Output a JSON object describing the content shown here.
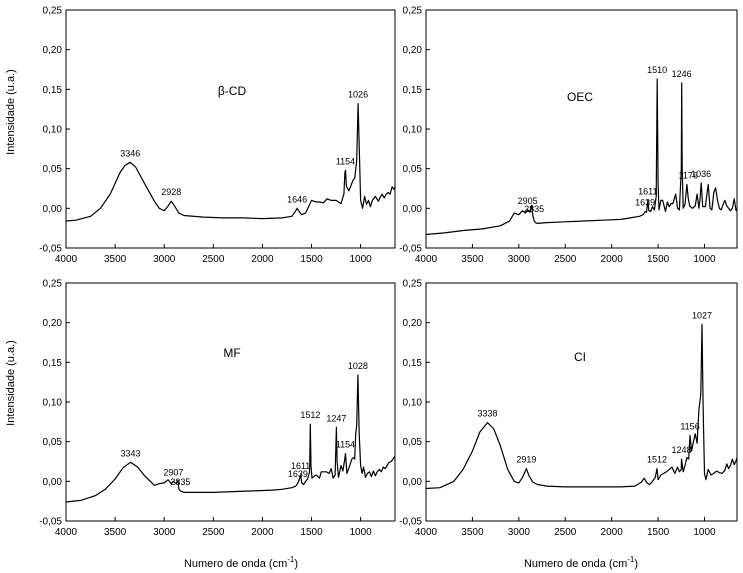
{
  "figure": {
    "ylabel": "Intensidade (u.a.)",
    "xlabel_left": "Numero de onda (cm-1)",
    "xlabel_right": "Numero de onda (cm-1)",
    "xlabel_base": "Numero de onda (cm",
    "xlabel_sup": "-1",
    "xlabel_tail": ")"
  },
  "chart_data": [
    {
      "type": "line",
      "label": "β-CD",
      "xlabel": "Numero de onda (cm-1)",
      "ylabel": "Intensidade (u.a.)",
      "xlim": [
        4000,
        650
      ],
      "ylim": [
        -0.05,
        0.25
      ],
      "xticks": [
        4000,
        3500,
        3000,
        2500,
        2000,
        1500,
        1000
      ],
      "yticks": [
        "-0,05",
        "0,00",
        "0,05",
        "0,10",
        "0,15",
        "0,20",
        "0,25"
      ],
      "series": [
        {
          "name": "β-CD",
          "x": [
            4000,
            3900,
            3750,
            3650,
            3550,
            3450,
            3400,
            3346,
            3290,
            3200,
            3100,
            3050,
            3000,
            2960,
            2928,
            2900,
            2850,
            2800,
            2600,
            2400,
            2200,
            2000,
            1800,
            1700,
            1660,
            1646,
            1620,
            1600,
            1560,
            1500,
            1450,
            1420,
            1380,
            1340,
            1300,
            1250,
            1200,
            1170,
            1160,
            1154,
            1145,
            1120,
            1100,
            1080,
            1060,
            1040,
            1026,
            1010,
            1000,
            980,
            960,
            940,
            920,
            900,
            880,
            850,
            820,
            800,
            780,
            760,
            740,
            720,
            700,
            680,
            660,
            650
          ],
          "y": [
            -0.016,
            -0.015,
            -0.01,
            0.0,
            0.018,
            0.045,
            0.054,
            0.058,
            0.052,
            0.031,
            0.009,
            0.0,
            -0.003,
            0.003,
            0.009,
            0.004,
            -0.006,
            -0.009,
            -0.011,
            -0.012,
            -0.012,
            -0.013,
            -0.012,
            -0.01,
            -0.003,
            0.0,
            -0.005,
            -0.008,
            -0.006,
            0.01,
            0.008,
            0.008,
            0.007,
            0.012,
            0.01,
            0.01,
            0.006,
            0.018,
            0.045,
            0.048,
            0.028,
            0.022,
            0.028,
            0.035,
            0.038,
            0.06,
            0.132,
            0.06,
            0.01,
            0.0,
            0.015,
            0.005,
            0.01,
            0.002,
            0.01,
            0.015,
            0.009,
            0.014,
            0.018,
            0.013,
            0.018,
            0.02,
            0.018,
            0.027,
            0.024,
            0.027
          ]
        }
      ],
      "annotations": [
        {
          "text": "3346",
          "x": 3346,
          "y": 0.058
        },
        {
          "text": "2928",
          "x": 2928,
          "y": 0.009
        },
        {
          "text": "1646",
          "x": 1646,
          "y": 0.0
        },
        {
          "text": "1154",
          "x": 1154,
          "y": 0.048
        },
        {
          "text": "1026",
          "x": 1026,
          "y": 0.132
        }
      ]
    },
    {
      "type": "line",
      "label": "OEC",
      "xlabel": "Numero de onda (cm-1)",
      "ylabel": "",
      "xlim": [
        4000,
        650
      ],
      "ylim": [
        -0.05,
        0.25
      ],
      "xticks": [
        4000,
        3500,
        3000,
        2500,
        2000,
        1500,
        1000
      ],
      "yticks": [
        "-0,05",
        "0,00",
        "0,05",
        "0,10",
        "0,15",
        "0,20",
        "0,25"
      ],
      "series": [
        {
          "name": "OEC",
          "x": [
            4000,
            3800,
            3600,
            3400,
            3200,
            3100,
            3050,
            3000,
            2960,
            2930,
            2905,
            2880,
            2860,
            2850,
            2835,
            2820,
            2800,
            2700,
            2500,
            2300,
            2100,
            1900,
            1800,
            1700,
            1660,
            1639,
            1625,
            1611,
            1600,
            1580,
            1560,
            1540,
            1520,
            1510,
            1500,
            1490,
            1470,
            1450,
            1420,
            1400,
            1380,
            1360,
            1340,
            1310,
            1290,
            1270,
            1250,
            1246,
            1240,
            1230,
            1210,
            1190,
            1176,
            1160,
            1130,
            1100,
            1080,
            1060,
            1050,
            1036,
            1020,
            990,
            960,
            940,
            920,
            900,
            880,
            860,
            840,
            820,
            800,
            780,
            760,
            740,
            720,
            700,
            680,
            660,
            650
          ],
          "y": [
            -0.033,
            -0.031,
            -0.028,
            -0.026,
            -0.022,
            -0.016,
            -0.006,
            -0.008,
            -0.003,
            -0.006,
            -0.002,
            -0.005,
            0.004,
            -0.009,
            -0.016,
            -0.018,
            -0.019,
            -0.018,
            -0.017,
            -0.016,
            -0.015,
            -0.014,
            -0.012,
            -0.01,
            -0.008,
            -0.004,
            -0.005,
            0.01,
            -0.003,
            -0.004,
            0.002,
            -0.002,
            0.015,
            0.163,
            0.03,
            -0.002,
            0.01,
            0.01,
            -0.004,
            0.008,
            0.002,
            0.006,
            0.006,
            0.018,
            0.0,
            -0.002,
            0.05,
            0.158,
            0.05,
            0.0,
            0.005,
            0.03,
            0.013,
            0.003,
            0.0,
            0.003,
            0.018,
            0.0,
            0.01,
            0.032,
            0.002,
            0.002,
            0.03,
            0.0,
            -0.002,
            0.02,
            0.026,
            0.01,
            0.0,
            -0.002,
            0.005,
            0.01,
            0.003,
            0.0,
            -0.003,
            0.0,
            0.012,
            -0.003,
            -0.003
          ]
        }
      ],
      "annotations": [
        {
          "text": "2905",
          "x": 2905,
          "y": -0.002
        },
        {
          "text": "2835",
          "x": 2835,
          "y": -0.012
        },
        {
          "text": "1639",
          "x": 1639,
          "y": -0.004
        },
        {
          "text": "1611",
          "x": 1611,
          "y": 0.01
        },
        {
          "text": "1510",
          "x": 1510,
          "y": 0.163
        },
        {
          "text": "1246",
          "x": 1246,
          "y": 0.158
        },
        {
          "text": "1176",
          "x": 1176,
          "y": 0.03
        },
        {
          "text": "1036",
          "x": 1036,
          "y": 0.032
        }
      ]
    },
    {
      "type": "line",
      "label": "MF",
      "xlabel": "Numero de onda (cm-1)",
      "ylabel": "Intensidade (u.a.)",
      "xlim": [
        4000,
        650
      ],
      "ylim": [
        -0.05,
        0.25
      ],
      "xticks": [
        4000,
        3500,
        3000,
        2500,
        2000,
        1500,
        1000
      ],
      "yticks": [
        "-0,05",
        "0,00",
        "0,05",
        "0,10",
        "0,15",
        "0,20",
        "0,25"
      ],
      "series": [
        {
          "name": "MF",
          "x": [
            4000,
            3850,
            3700,
            3600,
            3500,
            3420,
            3343,
            3270,
            3200,
            3100,
            3050,
            3000,
            2960,
            2930,
            2907,
            2880,
            2860,
            2850,
            2835,
            2815,
            2800,
            2700,
            2500,
            2300,
            2100,
            1900,
            1800,
            1700,
            1660,
            1639,
            1625,
            1611,
            1600,
            1580,
            1560,
            1540,
            1520,
            1512,
            1505,
            1495,
            1470,
            1450,
            1420,
            1400,
            1380,
            1350,
            1320,
            1300,
            1280,
            1260,
            1247,
            1240,
            1225,
            1200,
            1180,
            1165,
            1154,
            1140,
            1110,
            1090,
            1070,
            1060,
            1050,
            1040,
            1028,
            1015,
            1000,
            985,
            970,
            950,
            930,
            910,
            890,
            870,
            850,
            830,
            810,
            790,
            770,
            750,
            730,
            710,
            690,
            670,
            650
          ],
          "y": [
            -0.026,
            -0.024,
            -0.018,
            -0.01,
            0.003,
            0.017,
            0.024,
            0.018,
            0.007,
            -0.005,
            -0.003,
            -0.002,
            0.002,
            -0.003,
            0.0,
            -0.003,
            0.001,
            -0.01,
            -0.012,
            -0.013,
            -0.014,
            -0.014,
            -0.014,
            -0.013,
            -0.012,
            -0.011,
            -0.01,
            -0.008,
            -0.006,
            -0.002,
            0.002,
            0.008,
            -0.002,
            -0.004,
            0.0,
            0.003,
            0.012,
            0.072,
            0.02,
            0.004,
            0.007,
            0.008,
            0.004,
            0.012,
            0.012,
            0.012,
            0.01,
            0.016,
            0.004,
            0.008,
            0.068,
            0.025,
            0.005,
            0.02,
            0.013,
            0.025,
            0.035,
            0.01,
            0.02,
            0.028,
            0.03,
            0.028,
            0.06,
            0.07,
            0.134,
            0.06,
            0.02,
            0.01,
            0.018,
            0.005,
            0.01,
            0.012,
            0.006,
            0.013,
            0.007,
            0.012,
            0.015,
            0.012,
            0.018,
            0.016,
            0.02,
            0.024,
            0.025,
            0.028,
            0.032
          ]
        }
      ],
      "annotations": [
        {
          "text": "3343",
          "x": 3343,
          "y": 0.024
        },
        {
          "text": "2907",
          "x": 2907,
          "y": 0.0
        },
        {
          "text": "2835",
          "x": 2835,
          "y": -0.012
        },
        {
          "text": "1639",
          "x": 1639,
          "y": -0.002
        },
        {
          "text": "1611",
          "x": 1611,
          "y": 0.008
        },
        {
          "text": "1512",
          "x": 1512,
          "y": 0.072
        },
        {
          "text": "1247",
          "x": 1247,
          "y": 0.068
        },
        {
          "text": "1154",
          "x": 1154,
          "y": 0.035
        },
        {
          "text": "1028",
          "x": 1028,
          "y": 0.134
        }
      ]
    },
    {
      "type": "line",
      "label": "CI",
      "xlabel": "Numero de onda (cm-1)",
      "ylabel": "",
      "xlim": [
        4000,
        650
      ],
      "ylim": [
        -0.05,
        0.25
      ],
      "xticks": [
        4000,
        3500,
        3000,
        2500,
        2000,
        1500,
        1000
      ],
      "yticks": [
        "-0,05",
        "0,00",
        "0,05",
        "0,10",
        "0,15",
        "0,20",
        "0,25"
      ],
      "series": [
        {
          "name": "CI",
          "x": [
            4000,
            3850,
            3700,
            3600,
            3500,
            3420,
            3338,
            3270,
            3200,
            3120,
            3050,
            3000,
            2960,
            2919,
            2890,
            2850,
            2800,
            2700,
            2500,
            2300,
            2100,
            1900,
            1750,
            1680,
            1650,
            1620,
            1590,
            1560,
            1530,
            1512,
            1500,
            1470,
            1440,
            1410,
            1380,
            1350,
            1320,
            1290,
            1270,
            1250,
            1248,
            1230,
            1210,
            1190,
            1170,
            1156,
            1140,
            1120,
            1100,
            1080,
            1060,
            1040,
            1027,
            1015,
            1000,
            985,
            960,
            930,
            900,
            870,
            840,
            810,
            780,
            760,
            740,
            720,
            700,
            680,
            660,
            650
          ],
          "y": [
            -0.009,
            -0.008,
            0.0,
            0.015,
            0.038,
            0.062,
            0.074,
            0.066,
            0.045,
            0.015,
            0.0,
            -0.002,
            0.005,
            0.016,
            0.007,
            -0.001,
            -0.004,
            -0.006,
            -0.007,
            -0.007,
            -0.007,
            -0.007,
            -0.006,
            -0.001,
            0.004,
            -0.002,
            -0.004,
            0.0,
            0.005,
            0.016,
            0.002,
            0.008,
            0.01,
            0.012,
            0.015,
            0.018,
            0.01,
            0.018,
            0.012,
            0.015,
            0.028,
            0.012,
            0.02,
            0.03,
            0.028,
            0.058,
            0.038,
            0.05,
            0.06,
            0.048,
            0.09,
            0.11,
            0.198,
            0.095,
            0.01,
            0.002,
            0.015,
            0.008,
            0.01,
            0.013,
            0.011,
            0.01,
            0.014,
            0.022,
            0.016,
            0.02,
            0.028,
            0.021,
            0.026,
            0.03
          ]
        }
      ],
      "annotations": [
        {
          "text": "3338",
          "x": 3338,
          "y": 0.074
        },
        {
          "text": "2919",
          "x": 2919,
          "y": 0.016
        },
        {
          "text": "1512",
          "x": 1512,
          "y": 0.016
        },
        {
          "text": "1248",
          "x": 1248,
          "y": 0.028
        },
        {
          "text": "1156",
          "x": 1156,
          "y": 0.058
        },
        {
          "text": "1027",
          "x": 1027,
          "y": 0.198
        }
      ]
    }
  ]
}
